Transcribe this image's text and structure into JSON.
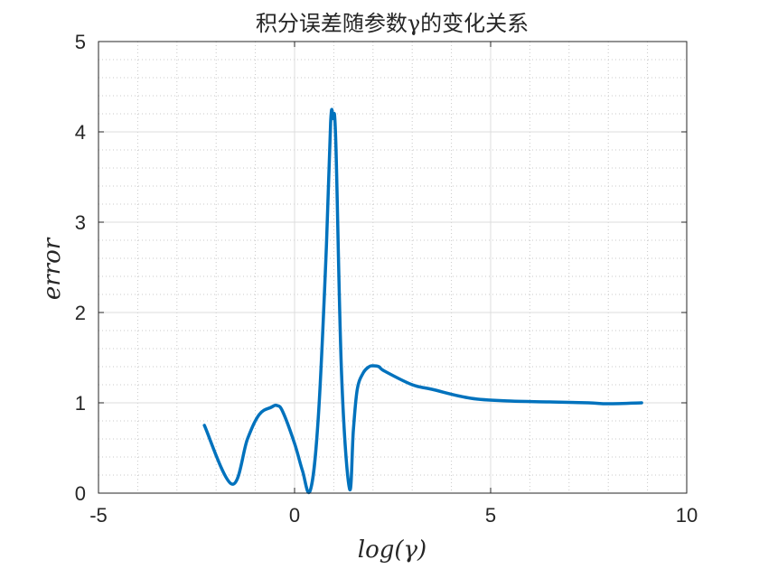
{
  "chart_data": {
    "type": "line",
    "title": "积分误差随参数γ的变化关系",
    "xlabel": "log(γ)",
    "ylabel": "error",
    "xlim": [
      -5,
      10
    ],
    "ylim": [
      0,
      5
    ],
    "xticks": [
      -5,
      0,
      5,
      10
    ],
    "yticks": [
      0,
      1,
      2,
      3,
      4,
      5
    ],
    "x_tick_labels": [
      "-5",
      "0",
      "5",
      "10"
    ],
    "y_tick_labels": [
      "0",
      "1",
      "2",
      "3",
      "4",
      "5"
    ],
    "grid": true,
    "minor_grid": true,
    "line_color": "#0072BD",
    "series": [
      {
        "x": [
          -2.3,
          -1.6,
          -1.2,
          -0.9,
          -0.6,
          -0.45,
          -0.3,
          0.0,
          0.2,
          0.4,
          0.6,
          0.8,
          0.92,
          0.98,
          1.05,
          1.2,
          1.4,
          1.5,
          1.6,
          1.75,
          1.9,
          2.0,
          2.15,
          2.3,
          3.0,
          3.5,
          4.5,
          5.5,
          6.5,
          7.5,
          8.0,
          8.85
        ],
        "y": [
          0.75,
          0.1,
          0.6,
          0.87,
          0.95,
          0.97,
          0.9,
          0.55,
          0.25,
          0.03,
          0.8,
          2.6,
          4.1,
          4.15,
          3.9,
          1.3,
          0.05,
          0.7,
          1.15,
          1.33,
          1.4,
          1.41,
          1.4,
          1.35,
          1.2,
          1.15,
          1.05,
          1.02,
          1.01,
          1.0,
          0.99,
          1.0
        ]
      }
    ]
  }
}
